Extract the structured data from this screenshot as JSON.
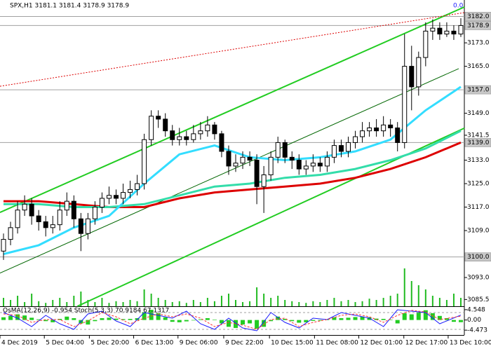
{
  "chart_data": [
    {
      "type": "candlestick",
      "title": "SPX,H1  3181.1 3181.4 3178.9 3178.9",
      "annotation": "0.0",
      "xlim": [
        -0.5,
        65.5
      ],
      "ylim": [
        3083.2,
        3187.6
      ],
      "xticks": [
        {
          "value": -0.5,
          "label": "4 Dec 2019"
        },
        {
          "value": 5.8,
          "label": "5 Dec 04:00"
        },
        {
          "value": 12.2,
          "label": "5 Dec 20:00"
        },
        {
          "value": 18.5,
          "label": "6 Dec 13:00"
        },
        {
          "value": 24.8,
          "label": "9 Dec 06:00"
        },
        {
          "value": 31.3,
          "label": "9 Dec 22:00"
        },
        {
          "value": 37.8,
          "label": "10 Dec 15:00"
        },
        {
          "value": 44.2,
          "label": "11 Dec 08:00"
        },
        {
          "value": 50.5,
          "label": "12 Dec 01:00"
        },
        {
          "value": 56.9,
          "label": "12 Dec 17:00"
        },
        {
          "value": 63.2,
          "label": "13 Dec 10:00"
        }
      ],
      "yticks": [
        {
          "value": 3173,
          "label": "3173.0"
        },
        {
          "value": 3165,
          "label": "3165.0"
        },
        {
          "value": 3149,
          "label": "3149.0"
        },
        {
          "value": 3141.5,
          "label": "3141.5"
        },
        {
          "value": 3133,
          "label": "3133.0"
        },
        {
          "value": 3125,
          "label": "3125.0"
        },
        {
          "value": 3117,
          "label": "3117.0"
        },
        {
          "value": 3109,
          "label": "3109.0"
        },
        {
          "value": 3093,
          "label": "3093.0"
        },
        {
          "value": 3085.5,
          "label": "3085.5"
        }
      ],
      "levels": [
        {
          "value": 3182,
          "label": "3182.0"
        },
        {
          "value": 3178.9,
          "label": "3178.9"
        },
        {
          "value": 3157,
          "label": "3157.0"
        },
        {
          "value": 3139,
          "label": "3139.0"
        },
        {
          "value": 3100,
          "label": "3100.0"
        }
      ],
      "color_up": "#ffffff",
      "color_down": "#000000",
      "candles": {
        "open": [
          3102,
          3106,
          3110,
          3116,
          3118,
          3114,
          3112,
          3110,
          3111,
          3116,
          3119,
          3113,
          3108,
          3113,
          3117,
          3120,
          3121,
          3120,
          3122,
          3123,
          3125,
          3140,
          3148,
          3147,
          3143,
          3140,
          3141,
          3140,
          3142,
          3143,
          3145,
          3142,
          3136,
          3131,
          3132,
          3134,
          3133,
          3124,
          3128,
          3134,
          3139,
          3134,
          3133,
          3130,
          3131,
          3132,
          3131,
          3134,
          3138,
          3136,
          3139,
          3141,
          3143,
          3144,
          3143,
          3145,
          3144,
          3139,
          3165,
          3158,
          3168,
          3177,
          3178,
          3176,
          3177,
          3176
        ],
        "high": [
          3108,
          3112,
          3119,
          3121,
          3120,
          3116,
          3114,
          3114,
          3119,
          3122,
          3121,
          3115,
          3115,
          3119,
          3122,
          3124,
          3123,
          3125,
          3126,
          3128,
          3142,
          3150,
          3150,
          3149,
          3145,
          3144,
          3143,
          3145,
          3146,
          3148,
          3146,
          3143,
          3138,
          3135,
          3136,
          3136,
          3135,
          3131,
          3136,
          3141,
          3140,
          3136,
          3135,
          3133,
          3135,
          3134,
          3136,
          3140,
          3140,
          3141,
          3143,
          3146,
          3146,
          3147,
          3148,
          3147,
          3146,
          3176,
          3172,
          3170,
          3180,
          3181,
          3180,
          3180,
          3179,
          3181.4
        ],
        "low": [
          3099,
          3104,
          3108,
          3114,
          3111,
          3109,
          3107,
          3108,
          3109,
          3114,
          3110,
          3102,
          3106,
          3111,
          3115,
          3118,
          3118,
          3118,
          3120,
          3121,
          3123,
          3138,
          3144,
          3141,
          3138,
          3138,
          3138,
          3139,
          3140,
          3141,
          3140,
          3134,
          3128,
          3129,
          3130,
          3131,
          3118,
          3115,
          3126,
          3132,
          3132,
          3130,
          3128,
          3128,
          3129,
          3129,
          3129,
          3132,
          3134,
          3134,
          3137,
          3139,
          3141,
          3141,
          3141,
          3141,
          3136,
          3137,
          3150,
          3155,
          3165,
          3174,
          3174,
          3175,
          3174,
          3175
        ],
        "close": [
          3106,
          3110,
          3116,
          3118,
          3114,
          3112,
          3110,
          3111,
          3116,
          3119,
          3113,
          3108,
          3113,
          3117,
          3120,
          3121,
          3120,
          3122,
          3123,
          3125,
          3140,
          3148,
          3147,
          3143,
          3140,
          3141,
          3140,
          3142,
          3143,
          3145,
          3142,
          3136,
          3131,
          3132,
          3134,
          3133,
          3124,
          3128,
          3134,
          3139,
          3134,
          3133,
          3130,
          3131,
          3132,
          3131,
          3134,
          3138,
          3136,
          3139,
          3141,
          3143,
          3144,
          3143,
          3145,
          3144,
          3139,
          3165,
          3158,
          3168,
          3177,
          3178,
          3176,
          3177,
          3176,
          3178.9
        ]
      },
      "moving_averages": [
        {
          "color": "#dd0000",
          "width": 3,
          "x": [
            0,
            5,
            10,
            15,
            20,
            25,
            30,
            35,
            40,
            45,
            50,
            55,
            60,
            65
          ],
          "values": [
            3119,
            3119,
            3118,
            3117,
            3117,
            3120,
            3122,
            3123,
            3124,
            3125,
            3127,
            3130,
            3134,
            3139
          ]
        },
        {
          "color": "#33ddaa",
          "width": 3,
          "x": [
            0,
            5,
            10,
            15,
            20,
            25,
            30,
            35,
            40,
            45,
            50,
            55,
            60,
            65
          ],
          "values": [
            3118,
            3118,
            3117,
            3117,
            3118,
            3121,
            3124,
            3125,
            3127,
            3128,
            3130,
            3133,
            3137,
            3143
          ]
        },
        {
          "color": "#33ddff",
          "width": 3,
          "x": [
            0,
            5,
            10,
            15,
            20,
            25,
            30,
            35,
            40,
            45,
            50,
            55,
            60,
            65
          ],
          "values": [
            3101,
            3104,
            3110,
            3114,
            3125,
            3135,
            3138,
            3134,
            3133,
            3134,
            3136,
            3140,
            3150,
            3158
          ]
        }
      ],
      "channel_lines": [
        {
          "color": "#22cc22",
          "style": "solid",
          "width": 2,
          "x": [
            -0.5,
            65.5
          ],
          "values": [
            3115.2,
            3185.2
          ]
        },
        {
          "color": "#22cc22",
          "style": "solid",
          "width": 2,
          "x": [
            10.5,
            65.5
          ],
          "values": [
            3083.2,
            3143.9
          ]
        },
        {
          "color": "#006600",
          "style": "solid",
          "width": 1,
          "x": [
            -0.5,
            64.7
          ],
          "values": [
            3094.5,
            3164.2
          ]
        },
        {
          "color": "#dd0000",
          "style": "dotted",
          "width": 1,
          "x": [
            -0.5,
            65.5
          ],
          "values": [
            3158.2,
            3183.3
          ]
        }
      ],
      "volume": {
        "color": "#22bb22",
        "lim": [
          0,
          150
        ],
        "values": [
          20,
          15,
          25,
          10,
          30,
          12,
          8,
          15,
          20,
          10,
          25,
          35,
          15,
          10,
          20,
          8,
          12,
          10,
          15,
          12,
          40,
          30,
          20,
          15,
          10,
          12,
          8,
          15,
          10,
          20,
          12,
          25,
          30,
          15,
          10,
          12,
          45,
          30,
          20,
          25,
          15,
          12,
          10,
          8,
          12,
          10,
          15,
          20,
          12,
          15,
          10,
          12,
          18,
          15,
          20,
          25,
          30,
          90,
          60,
          50,
          40,
          25,
          20,
          15,
          30,
          20
        ]
      }
    },
    {
      "type": "oscillator",
      "title": "OsMA(12,26,9) -0.954  Stoch(5,3,3) 70.9184 67.1317",
      "ylim": [
        -6.6,
        5.75
      ],
      "yticks": [
        4.548,
        {
          "value": 0,
          "label": "0.00"
        },
        -4.473
      ],
      "histogram": {
        "color": "#22cc22",
        "values": [
          1.2,
          1.8,
          2.5,
          2.0,
          1.0,
          0.3,
          -0.5,
          -1.0,
          0.5,
          1.5,
          0.8,
          -1.5,
          -2.0,
          -0.5,
          0.8,
          1.0,
          0.6,
          0.4,
          0.5,
          0.8,
          3.5,
          4.5,
          3.0,
          1.2,
          -0.8,
          -1.0,
          -0.6,
          -0.2,
          0.3,
          0.8,
          0.2,
          -1.5,
          -3.0,
          -3.5,
          -2.0,
          -1.5,
          -3.8,
          -3.0,
          -0.5,
          1.5,
          0.5,
          -0.5,
          -1.2,
          -1.0,
          -0.4,
          -0.3,
          0.3,
          1.2,
          0.8,
          1.0,
          1.3,
          1.5,
          1.2,
          0.6,
          0.5,
          0.2,
          -1.5,
          3.0,
          2.5,
          3.5,
          4.3,
          3.0,
          1.8,
          0.8,
          -0.8,
          -0.954
        ]
      },
      "stoch": {
        "lim": [
          0,
          100
        ],
        "levels": [
          20,
          80
        ],
        "series": [
          {
            "color": "#1a1aff",
            "x": [
              0,
              2,
              4,
              6,
              8,
              10,
              12,
              14,
              16,
              18,
              20,
              22,
              24,
              26,
              28,
              30,
              32,
              34,
              36,
              38,
              40,
              42,
              44,
              46,
              48,
              50,
              52,
              54,
              56,
              58,
              60,
              62,
              65
            ],
            "values": [
              80,
              60,
              30,
              70,
              40,
              20,
              75,
              85,
              50,
              30,
              80,
              70,
              60,
              85,
              40,
              20,
              60,
              25,
              15,
              80,
              45,
              25,
              60,
              55,
              80,
              70,
              60,
              30,
              90,
              85,
              80,
              40,
              70.9184
            ]
          },
          {
            "color": "#ff3333",
            "x": [
              0,
              2,
              4,
              6,
              8,
              10,
              12,
              14,
              16,
              18,
              20,
              22,
              24,
              26,
              28,
              30,
              32,
              34,
              36,
              38,
              40,
              42,
              44,
              46,
              48,
              50,
              52,
              54,
              56,
              58,
              60,
              62,
              65
            ],
            "values": [
              75,
              70,
              45,
              55,
              55,
              30,
              50,
              80,
              65,
              40,
              60,
              75,
              65,
              75,
              60,
              30,
              45,
              35,
              20,
              55,
              60,
              30,
              45,
              55,
              70,
              75,
              65,
              45,
              70,
              88,
              82,
              55,
              67.1317
            ]
          }
        ]
      }
    }
  ]
}
